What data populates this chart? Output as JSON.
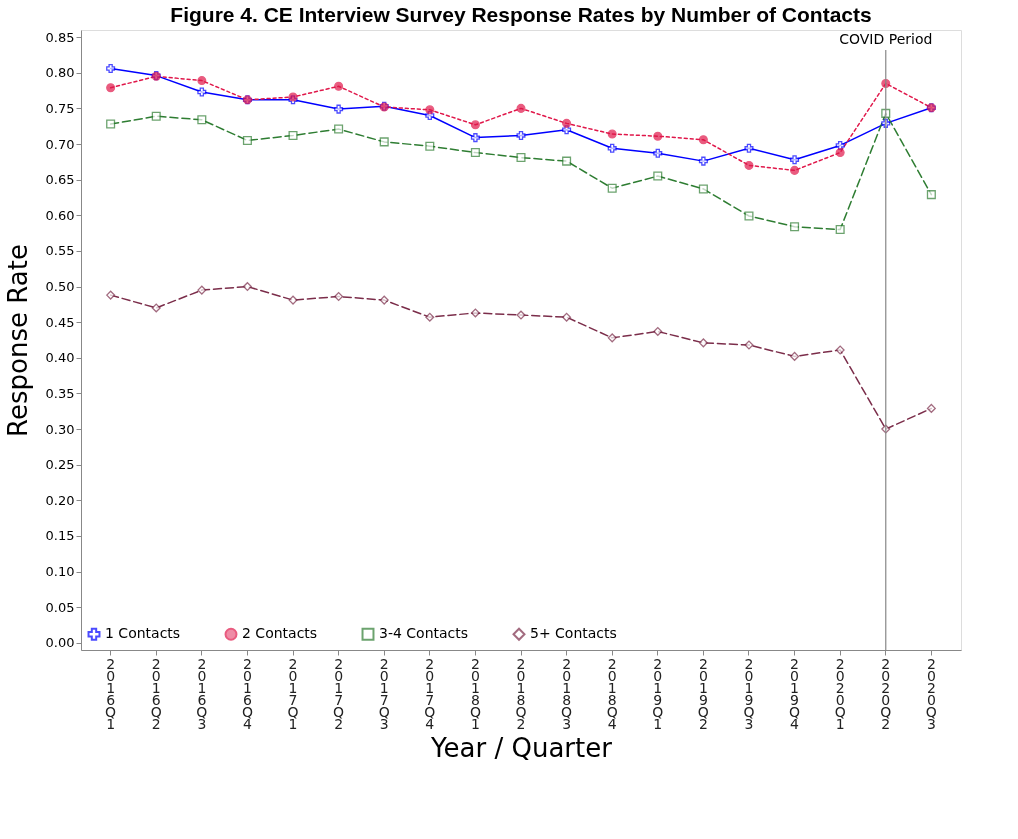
{
  "chart_data": {
    "type": "line",
    "title": "Figure 4. CE Interview Survey Response Rates by Number of Contacts",
    "xlabel": "Year / Quarter",
    "ylabel": "Response Rate",
    "categories": [
      "2016Q1",
      "2016Q2",
      "2016Q3",
      "2016Q4",
      "2017Q1",
      "2017Q2",
      "2017Q3",
      "2017Q4",
      "2018Q1",
      "2018Q2",
      "2018Q3",
      "2018Q4",
      "2019Q1",
      "2019Q2",
      "2019Q3",
      "2019Q4",
      "2020Q1",
      "2020Q2",
      "2020Q3"
    ],
    "series": [
      {
        "name": "1 Contacts",
        "color": "#0000ff",
        "marker": "cross",
        "line_style": "solid",
        "values": [
          0.806,
          0.796,
          0.773,
          0.762,
          0.762,
          0.749,
          0.753,
          0.74,
          0.709,
          0.712,
          0.72,
          0.694,
          0.687,
          0.676,
          0.694,
          0.678,
          0.698,
          0.729,
          0.751
        ]
      },
      {
        "name": "2 Contacts",
        "color": "#e0174a",
        "marker": "circle",
        "line_style": "dotted",
        "values": [
          0.779,
          0.795,
          0.789,
          0.762,
          0.766,
          0.781,
          0.752,
          0.748,
          0.727,
          0.75,
          0.729,
          0.714,
          0.711,
          0.706,
          0.67,
          0.663,
          0.688,
          0.785,
          0.751
        ]
      },
      {
        "name": "3-4 Contacts",
        "color": "#2e7d32",
        "marker": "square",
        "line_style": "dashed",
        "values": [
          0.728,
          0.739,
          0.734,
          0.705,
          0.712,
          0.721,
          0.703,
          0.697,
          0.688,
          0.681,
          0.676,
          0.638,
          0.655,
          0.637,
          0.599,
          0.584,
          0.58,
          0.743,
          0.629
        ]
      },
      {
        "name": "5+ Contacts",
        "color": "#7b2d4a",
        "marker": "diamond",
        "line_style": "dashed",
        "values": [
          0.488,
          0.47,
          0.495,
          0.5,
          0.481,
          0.486,
          0.481,
          0.457,
          0.463,
          0.46,
          0.457,
          0.428,
          0.437,
          0.421,
          0.418,
          0.402,
          0.411,
          0.3,
          0.329
        ]
      }
    ],
    "ylim": [
      -0.01,
      0.86
    ],
    "yticks": [
      {
        "value": 0,
        "label": "0.00"
      },
      {
        "value": 0.05,
        "label": "0.05"
      },
      {
        "value": 0.1,
        "label": "0.10"
      },
      {
        "value": 0.15,
        "label": "0.15"
      },
      {
        "value": 0.2,
        "label": "0.20"
      },
      {
        "value": 0.25,
        "label": "0.25"
      },
      {
        "value": 0.3,
        "label": "0.30"
      },
      {
        "value": 0.35,
        "label": "0.35"
      },
      {
        "value": 0.4,
        "label": "0.40"
      },
      {
        "value": 0.45,
        "label": "0.45"
      },
      {
        "value": 0.5,
        "label": "0.50"
      },
      {
        "value": 0.55,
        "label": "0.55"
      },
      {
        "value": 0.6,
        "label": "0.60"
      },
      {
        "value": 0.65,
        "label": "0.65"
      },
      {
        "value": 0.7,
        "label": "0.70"
      },
      {
        "value": 0.75,
        "label": "0.75"
      },
      {
        "value": 0.8,
        "label": "0.80"
      },
      {
        "value": 0.85,
        "label": "0.85"
      }
    ],
    "ref_lines": [
      {
        "axis": "x",
        "value": "2020Q2",
        "label": "COVID Period",
        "color": "#888888"
      }
    ],
    "legend": "bottom left",
    "grid": false
  }
}
